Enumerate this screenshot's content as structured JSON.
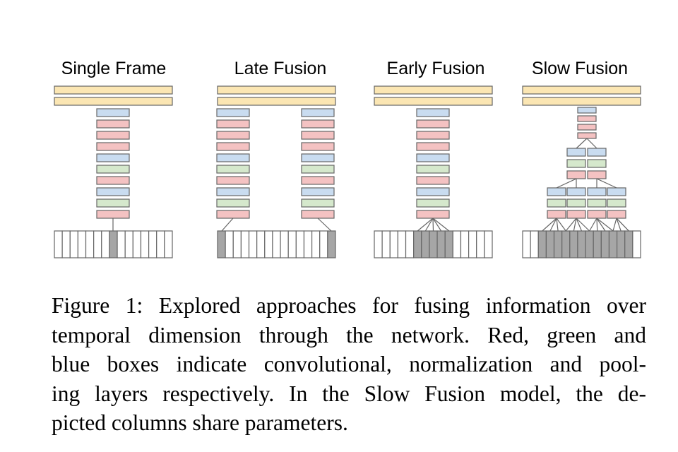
{
  "figure": {
    "panels": [
      {
        "key": "single",
        "title": "Single Frame"
      },
      {
        "key": "late",
        "title": "Late Fusion"
      },
      {
        "key": "early",
        "title": "Early Fusion"
      },
      {
        "key": "slow",
        "title": "Slow Fusion"
      }
    ],
    "colors": {
      "fc": "#fbe6b3",
      "conv": "#f4c2c2",
      "norm": "#d5e8cc",
      "pool": "#c9dcf0",
      "outline": "#666666",
      "frame_active": "#a6a6a6",
      "frame_inactive": "#ffffff"
    },
    "layer_sequence": [
      "pool",
      "conv",
      "conv",
      "conv",
      "pool",
      "norm",
      "conv",
      "pool",
      "norm",
      "conv"
    ],
    "slow_fusion_stages": [
      [
        "pool",
        "conv",
        "conv",
        "conv"
      ],
      [
        "pool",
        "norm",
        "conv"
      ],
      [
        "pool",
        "norm",
        "conv"
      ]
    ],
    "frames_per_clip": 15
  },
  "caption": {
    "lines": [
      "Figure 1: Explored approaches for fusing information over",
      "temporal dimension through the network.  Red, green and",
      "blue boxes indicate convolutional, normalization and pool-",
      "ing layers respectively.  In the Slow Fusion model, the de-",
      "picted columns share parameters."
    ]
  }
}
